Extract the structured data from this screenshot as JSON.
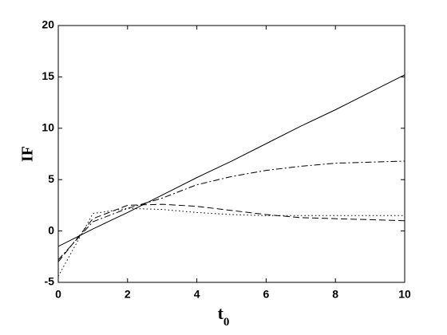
{
  "chart_data": {
    "type": "line",
    "xlabel": "t",
    "xlabel_subscript": "0",
    "ylabel": "IF",
    "x": [
      0,
      1,
      2,
      3,
      4,
      5,
      6,
      7,
      8,
      9,
      10
    ],
    "series": [
      {
        "color": "#000000",
        "dash": "solid",
        "values": [
          -1.5,
          0.2,
          1.8,
          3.5,
          5.2,
          6.8,
          8.5,
          10.2,
          11.8,
          13.5,
          15.2
        ]
      },
      {
        "color": "#000000",
        "dash": "dashdot",
        "values": [
          -2.8,
          0.9,
          2.2,
          3.2,
          4.5,
          5.3,
          5.9,
          6.3,
          6.6,
          6.7,
          6.8
        ]
      },
      {
        "color": "#000000",
        "dash": "dashed",
        "values": [
          -3.0,
          1.2,
          2.5,
          2.6,
          2.4,
          2.0,
          1.6,
          1.3,
          1.2,
          1.1,
          1.0
        ]
      },
      {
        "color": "#000000",
        "dash": "dotted",
        "values": [
          -4.4,
          1.7,
          2.2,
          2.1,
          1.8,
          1.6,
          1.5,
          1.5,
          1.5,
          1.5,
          1.5
        ]
      }
    ],
    "xlim": [
      0,
      10
    ],
    "xticks": [
      0,
      2,
      4,
      6,
      8,
      10
    ],
    "ylim": [
      -5,
      20
    ],
    "yticks": [
      -5,
      0,
      5,
      10,
      15,
      20
    ],
    "grid": false
  }
}
